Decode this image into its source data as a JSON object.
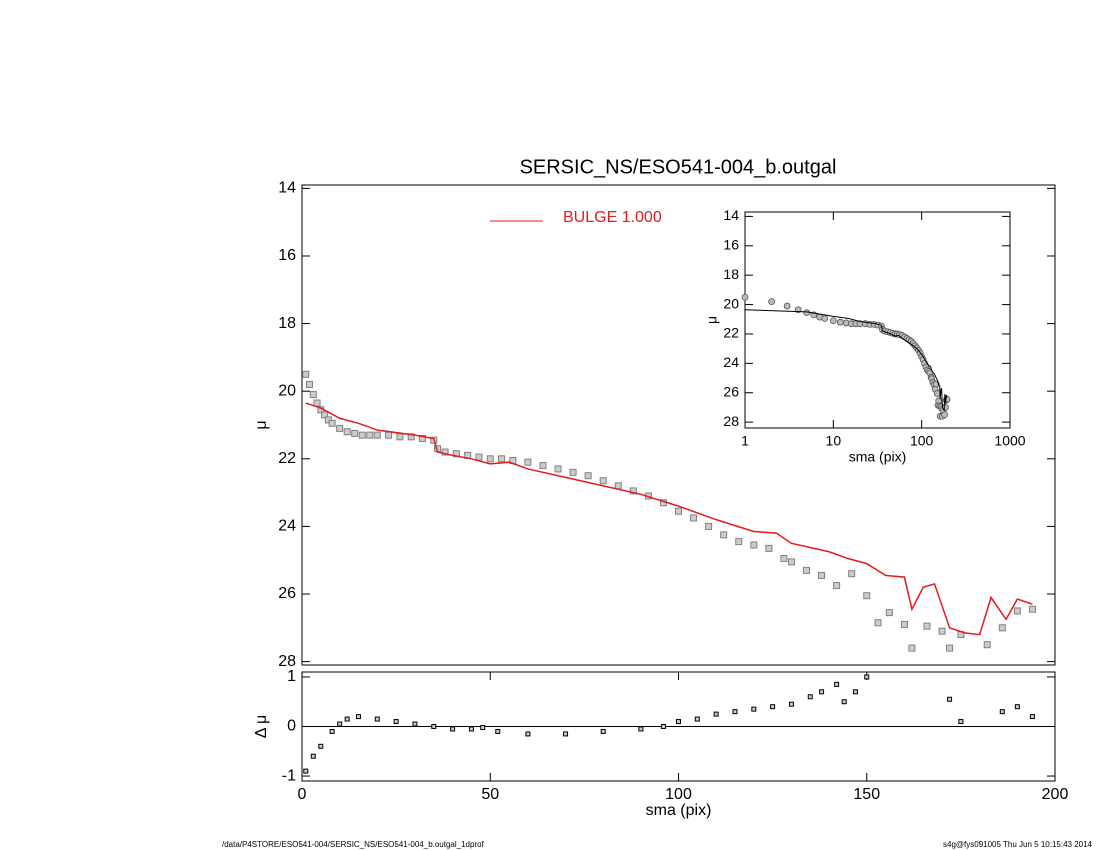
{
  "chart_data": [
    {
      "type": "scatter",
      "title": "SERSIC_NS/ESO541-004_b.outgal",
      "y_label": "μ",
      "xlim": [
        0,
        200
      ],
      "ylim": [
        13.9,
        28.1
      ],
      "yticks": [
        14,
        16,
        18,
        20,
        22,
        24,
        26,
        28
      ],
      "y_reversed": true,
      "series": [
        {
          "color": "#808080",
          "x": [
            1,
            2,
            3,
            4,
            5,
            6,
            7,
            8,
            10,
            12,
            14,
            16,
            18,
            20,
            23,
            26,
            29,
            32,
            35,
            36,
            38,
            41,
            44,
            47,
            50,
            53,
            56,
            60,
            64,
            68,
            72,
            76,
            80,
            84,
            88,
            92,
            96,
            100,
            104,
            108,
            112,
            116,
            120,
            124,
            128,
            130,
            134,
            138,
            142,
            146,
            150,
            153,
            156,
            160,
            162,
            166,
            170,
            172,
            175,
            182,
            186,
            190,
            194
          ],
          "values": [
            19.5,
            19.8,
            20.1,
            20.35,
            20.55,
            20.7,
            20.85,
            20.95,
            21.1,
            21.2,
            21.25,
            21.3,
            21.3,
            21.3,
            21.3,
            21.35,
            21.35,
            21.4,
            21.45,
            21.7,
            21.8,
            21.85,
            21.9,
            21.95,
            22.0,
            22.0,
            22.05,
            22.1,
            22.2,
            22.3,
            22.4,
            22.5,
            22.65,
            22.8,
            22.95,
            23.1,
            23.3,
            23.55,
            23.75,
            24.0,
            24.25,
            24.45,
            24.55,
            24.65,
            24.95,
            25.05,
            25.3,
            25.45,
            25.75,
            25.4,
            26.05,
            26.85,
            26.55,
            26.9,
            27.6,
            26.95,
            27.1,
            27.6,
            27.2,
            27.5,
            27.0,
            26.5,
            26.45
          ]
        },
        {
          "name": "BULGE  1.000",
          "color": "#e41a1c",
          "x": [
            1,
            5,
            10,
            15,
            20,
            30,
            35,
            36,
            40,
            45,
            50,
            55,
            60,
            70,
            80,
            90,
            100,
            110,
            120,
            126,
            130,
            140,
            145,
            150,
            155,
            160,
            162,
            165,
            168,
            172,
            176,
            180,
            183,
            187,
            190,
            194
          ],
          "values": [
            20.35,
            20.5,
            20.8,
            20.95,
            21.15,
            21.3,
            21.4,
            21.8,
            21.9,
            22.0,
            22.15,
            22.1,
            22.3,
            22.55,
            22.8,
            23.05,
            23.4,
            23.8,
            24.15,
            24.2,
            24.5,
            24.75,
            24.95,
            25.1,
            25.45,
            25.5,
            26.45,
            25.8,
            25.7,
            27.0,
            27.15,
            27.2,
            26.1,
            26.75,
            26.15,
            26.3
          ]
        }
      ]
    },
    {
      "type": "scatter",
      "x_label": "sma (pix)",
      "y_label": "μ",
      "log_x": true,
      "xlim": [
        1,
        1000
      ],
      "xticks": [
        1,
        10,
        100,
        1000
      ],
      "ylim": [
        13.7,
        28.4
      ],
      "yticks": [
        14,
        16,
        18,
        20,
        22,
        24,
        26,
        28
      ],
      "y_reversed": true
    },
    {
      "type": "scatter",
      "x_label": "sma (pix)",
      "y_label": "Δ μ",
      "xlim": [
        0,
        200
      ],
      "xticks": [
        0,
        50,
        100,
        150,
        200
      ],
      "ylim": [
        -1.1,
        1.1
      ],
      "yticks": [
        -1,
        0,
        1
      ],
      "zero_line": true,
      "series": [
        {
          "color": "#000000",
          "x": [
            1,
            3,
            5,
            8,
            10,
            12,
            15,
            20,
            25,
            30,
            35,
            40,
            45,
            48,
            52,
            60,
            70,
            80,
            90,
            96,
            100,
            105,
            110,
            115,
            120,
            125,
            130,
            135,
            138,
            142,
            144,
            147,
            150,
            172,
            175,
            186,
            190,
            194
          ],
          "values": [
            -0.9,
            -0.6,
            -0.4,
            -0.1,
            0.05,
            0.15,
            0.2,
            0.15,
            0.1,
            0.05,
            0.0,
            -0.05,
            -0.05,
            -0.02,
            -0.1,
            -0.15,
            -0.15,
            -0.1,
            -0.05,
            0.0,
            0.1,
            0.15,
            0.25,
            0.3,
            0.35,
            0.4,
            0.45,
            0.6,
            0.7,
            0.85,
            0.5,
            0.7,
            1.0,
            0.55,
            0.1,
            0.3,
            0.4,
            0.2
          ]
        }
      ]
    }
  ],
  "footer": {
    "left": "/data/P4STORE/ESO541-004/SERSIC_NS/ESO541-004_b.outgal_1dprof",
    "right": "s4g@fys091005  Thu Jun  5 10:15:43 2014"
  }
}
